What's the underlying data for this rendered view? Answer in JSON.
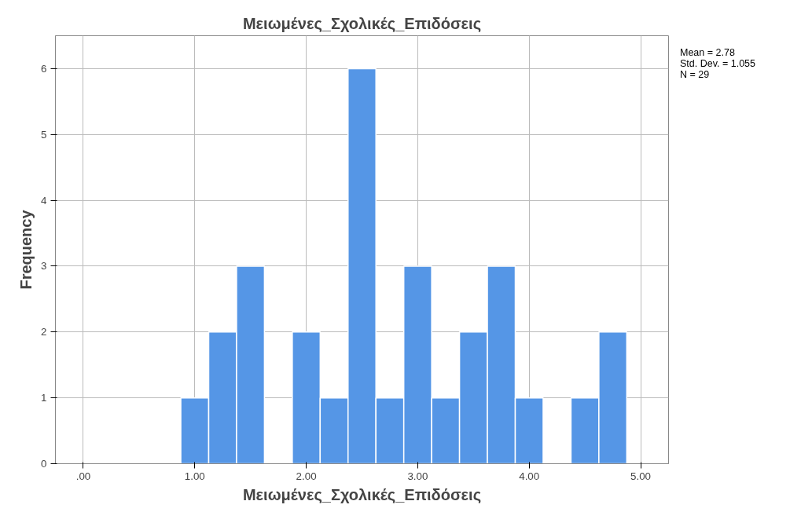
{
  "chart_data": {
    "type": "histogram",
    "title": "Μειωμένες_Σχολικές_Επιδόσεις",
    "xlabel": "Μειωμένες_Σχολικές_Επιδόσεις",
    "ylabel": "Frequency",
    "bins": [
      0.875,
      1.125,
      1.375,
      1.625,
      1.875,
      2.125,
      2.375,
      2.625,
      2.875,
      3.125,
      3.375,
      3.625,
      3.875,
      4.125,
      4.375,
      4.625,
      4.875
    ],
    "values": [
      1,
      2,
      3,
      0,
      2,
      1,
      6,
      1,
      3,
      1,
      2,
      3,
      1,
      0,
      1,
      2
    ],
    "color": "#5596e6",
    "xlim": [
      -0.25,
      5.25
    ],
    "ylim": [
      0,
      6.5
    ],
    "xticks": [
      {
        "value": 0,
        "label": ".00"
      },
      {
        "value": 1,
        "label": "1.00"
      },
      {
        "value": 2,
        "label": "2.00"
      },
      {
        "value": 3,
        "label": "3.00"
      },
      {
        "value": 4,
        "label": "4.00"
      },
      {
        "value": 5,
        "label": "5.00"
      }
    ],
    "yticks": [
      0,
      1,
      2,
      3,
      4,
      5,
      6
    ],
    "grid": true,
    "annotations": [
      "Mean = 2.78",
      "Std. Dev. = 1.055",
      "N = 29"
    ]
  }
}
